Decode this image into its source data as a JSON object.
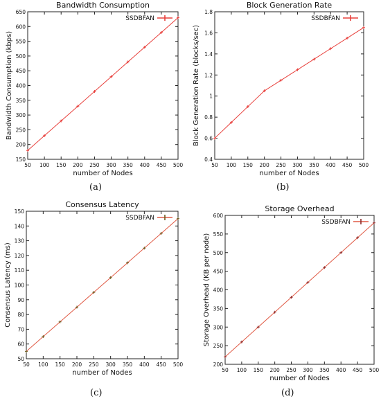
{
  "chart_data": [
    {
      "type": "line",
      "title": "Bandwidth Consumption",
      "xlabel": "number of Nodes",
      "ylabel": "Bandwidth Consumption (kbps)",
      "caption": "(a)",
      "xlim": [
        50,
        500
      ],
      "ylim": [
        150,
        650
      ],
      "xticks": [
        50,
        100,
        150,
        200,
        250,
        300,
        350,
        400,
        450,
        500
      ],
      "yticks": [
        150,
        200,
        250,
        300,
        350,
        400,
        450,
        500,
        550,
        600,
        650
      ],
      "grid": false,
      "legend_position": "top-right",
      "series": [
        {
          "name": "SSDBFAN",
          "color": "#e8403c",
          "marker_color": "#e8403c",
          "x": [
            50,
            100,
            150,
            200,
            250,
            300,
            350,
            400,
            450,
            500
          ],
          "y": [
            180,
            230,
            280,
            330,
            380,
            430,
            480,
            530,
            580,
            630
          ]
        }
      ]
    },
    {
      "type": "line",
      "title": "Block Generation Rate",
      "xlabel": "number of Nodes",
      "ylabel": "Block Generation Rate (blocks/sec)",
      "caption": "(b)",
      "xlim": [
        50,
        500
      ],
      "ylim": [
        0.4,
        1.8
      ],
      "xticks": [
        50,
        100,
        150,
        200,
        250,
        300,
        350,
        400,
        450,
        500
      ],
      "yticks": [
        "0.4",
        "0.6",
        "0.8",
        "1",
        "1.2",
        "1.4",
        "1.6",
        "1.8"
      ],
      "grid": false,
      "legend_position": "top-right",
      "series": [
        {
          "name": "SSDBFAN",
          "color": "#e8403c",
          "marker_color": "#e8403c",
          "x": [
            50,
            100,
            150,
            200,
            250,
            300,
            350,
            400,
            450,
            500
          ],
          "y": [
            0.6,
            0.75,
            0.9,
            1.05,
            1.15,
            1.25,
            1.35,
            1.45,
            1.55,
            1.65
          ]
        }
      ]
    },
    {
      "type": "line",
      "title": "Consensus Latency",
      "xlabel": "number of Nodes",
      "ylabel": "Consensus Latency (ms)",
      "caption": "(c)",
      "xlim": [
        50,
        500
      ],
      "ylim": [
        50,
        150
      ],
      "xticks": [
        50,
        100,
        150,
        200,
        250,
        300,
        350,
        400,
        450,
        500
      ],
      "yticks": [
        50,
        60,
        70,
        80,
        90,
        100,
        110,
        120,
        130,
        140,
        150
      ],
      "grid": false,
      "legend_position": "top-right",
      "series": [
        {
          "name": "SSDBFAN",
          "color": "#e05a45",
          "marker_color": "#6b5a1e",
          "x": [
            50,
            100,
            150,
            200,
            250,
            300,
            350,
            400,
            450,
            500
          ],
          "y": [
            55,
            65,
            75,
            85,
            95,
            105,
            115,
            125,
            135,
            145
          ]
        }
      ]
    },
    {
      "type": "line",
      "title": "Storage Overhead",
      "xlabel": "number of Nodes",
      "ylabel": "Storage Overhead (KB per node)",
      "caption": "(d)",
      "xlim": [
        50,
        500
      ],
      "ylim": [
        200,
        600
      ],
      "xticks": [
        50,
        100,
        150,
        200,
        250,
        300,
        350,
        400,
        450,
        500
      ],
      "yticks": [
        200,
        250,
        300,
        350,
        400,
        450,
        500,
        550,
        600
      ],
      "grid": false,
      "legend_position": "top-right",
      "series": [
        {
          "name": "SSDBFAN",
          "color": "#e05a45",
          "marker_color": "#8b2a2a",
          "x": [
            50,
            100,
            150,
            200,
            250,
            300,
            350,
            400,
            450,
            500
          ],
          "y": [
            220,
            260,
            300,
            340,
            380,
            420,
            460,
            500,
            540,
            580
          ]
        }
      ]
    }
  ]
}
